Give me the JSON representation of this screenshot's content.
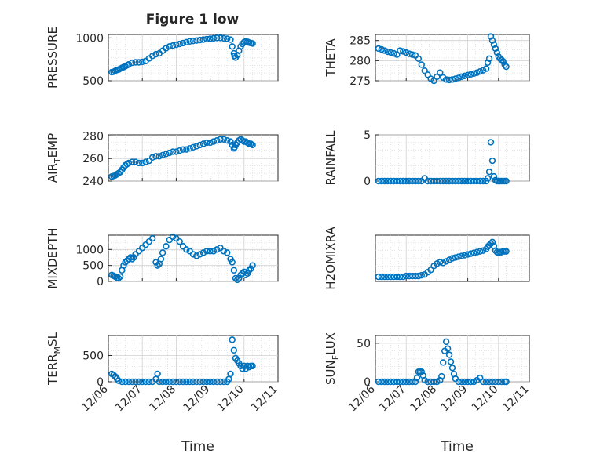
{
  "chart_data": [
    {
      "type": "scatter",
      "title": "Figure 1 low",
      "ylabel": "PRESSURE",
      "yticks": [
        "500",
        "1000"
      ],
      "ytick_values": [
        500,
        1000
      ],
      "ylim": [
        500,
        1040
      ],
      "xlim": [
        0,
        5
      ],
      "x": [
        0.1,
        0.15,
        0.2,
        0.25,
        0.3,
        0.35,
        0.4,
        0.45,
        0.5,
        0.55,
        0.6,
        0.7,
        0.8,
        0.9,
        1.0,
        1.1,
        1.2,
        1.3,
        1.4,
        1.5,
        1.6,
        1.7,
        1.8,
        1.9,
        2.0,
        2.1,
        2.2,
        2.3,
        2.4,
        2.5,
        2.6,
        2.7,
        2.8,
        2.9,
        3.0,
        3.1,
        3.2,
        3.3,
        3.4,
        3.5,
        3.6,
        3.65,
        3.7,
        3.72,
        3.75,
        3.8,
        3.85,
        3.9,
        3.95,
        4.0,
        4.05,
        4.1,
        4.15,
        4.2,
        4.25
      ],
      "y": [
        600,
        605,
        615,
        625,
        630,
        640,
        650,
        660,
        670,
        680,
        690,
        710,
        715,
        715,
        720,
        730,
        760,
        790,
        810,
        820,
        850,
        880,
        900,
        910,
        920,
        930,
        940,
        950,
        960,
        965,
        970,
        975,
        980,
        985,
        990,
        995,
        1000,
        1000,
        995,
        990,
        980,
        900,
        820,
        790,
        770,
        800,
        850,
        900,
        930,
        950,
        960,
        955,
        945,
        940,
        935
      ],
      "xlabel": ""
    },
    {
      "type": "scatter",
      "ylabel": "THETA",
      "yticks": [
        "275",
        "280",
        "285"
      ],
      "ytick_values": [
        275,
        280,
        285
      ],
      "ylim": [
        275,
        286.5
      ],
      "xlim": [
        0,
        5
      ],
      "x": [
        0.1,
        0.2,
        0.3,
        0.4,
        0.5,
        0.6,
        0.7,
        0.8,
        0.9,
        1.0,
        1.1,
        1.2,
        1.3,
        1.4,
        1.5,
        1.6,
        1.7,
        1.8,
        1.9,
        2.0,
        2.1,
        2.2,
        2.3,
        2.4,
        2.5,
        2.6,
        2.7,
        2.8,
        2.9,
        3.0,
        3.1,
        3.2,
        3.3,
        3.4,
        3.5,
        3.6,
        3.65,
        3.7,
        3.75,
        3.8,
        3.85,
        3.9,
        3.95,
        4.0,
        4.05,
        4.1,
        4.15,
        4.2,
        4.25
      ],
      "y": [
        283,
        282.8,
        282.5,
        282.2,
        282.0,
        281.8,
        281.5,
        282.5,
        282.3,
        282.0,
        281.7,
        281.5,
        281.3,
        280.5,
        279.0,
        277.5,
        276.5,
        275.5,
        275.0,
        276.0,
        277.0,
        275.8,
        275.3,
        275.2,
        275.3,
        275.5,
        275.7,
        276.0,
        276.2,
        276.4,
        276.6,
        276.8,
        277.0,
        277.3,
        277.6,
        278.0,
        279.5,
        280.5,
        286.0,
        285.0,
        284.0,
        283.0,
        282.0,
        281.0,
        280.5,
        280.2,
        279.8,
        279.0,
        278.5
      ],
      "xlabel": ""
    },
    {
      "type": "scatter",
      "ylabel_main": "AIR",
      "ylabel_sub": "T",
      "ylabel_rest": "EMP",
      "yticks": [
        "240",
        "260",
        "280"
      ],
      "ytick_values": [
        240,
        260,
        280
      ],
      "ylim": [
        240,
        281
      ],
      "xlim": [
        0,
        5
      ],
      "x": [
        0.1,
        0.15,
        0.2,
        0.25,
        0.3,
        0.35,
        0.4,
        0.45,
        0.5,
        0.55,
        0.6,
        0.7,
        0.8,
        0.9,
        1.0,
        1.1,
        1.2,
        1.3,
        1.4,
        1.5,
        1.6,
        1.7,
        1.8,
        1.9,
        2.0,
        2.1,
        2.2,
        2.3,
        2.4,
        2.5,
        2.6,
        2.7,
        2.8,
        2.9,
        3.0,
        3.1,
        3.2,
        3.3,
        3.4,
        3.5,
        3.6,
        3.65,
        3.7,
        3.72,
        3.75,
        3.8,
        3.85,
        3.9,
        3.95,
        4.0,
        4.05,
        4.1,
        4.15,
        4.2,
        4.25
      ],
      "y": [
        244,
        244.5,
        245,
        246,
        247,
        248,
        250,
        252,
        254,
        255,
        256,
        257,
        257,
        256,
        256,
        257,
        258,
        261,
        262,
        262,
        263,
        264,
        265,
        266,
        266,
        267,
        268,
        268,
        269,
        270,
        271,
        272,
        273,
        274,
        274,
        275,
        276,
        277,
        277,
        276,
        275,
        272,
        269,
        270,
        272,
        274,
        276,
        277,
        276,
        275,
        275,
        274,
        273,
        273,
        272
      ],
      "xlabel": ""
    },
    {
      "type": "scatter",
      "ylabel": "RAINFALL",
      "yticks": [
        "0",
        "5"
      ],
      "ytick_values": [
        0,
        5
      ],
      "ylim": [
        0,
        5
      ],
      "xlim": [
        0,
        5
      ],
      "x": [
        0.1,
        0.2,
        0.3,
        0.4,
        0.5,
        0.6,
        0.7,
        0.8,
        0.9,
        1.0,
        1.1,
        1.2,
        1.3,
        1.4,
        1.5,
        1.6,
        1.7,
        1.8,
        1.9,
        2.0,
        2.1,
        2.2,
        2.3,
        2.4,
        2.5,
        2.6,
        2.7,
        2.8,
        2.9,
        3.0,
        3.1,
        3.2,
        3.3,
        3.4,
        3.5,
        3.6,
        3.65,
        3.7,
        3.75,
        3.8,
        3.85,
        3.9,
        3.95,
        4.0,
        4.05,
        4.1,
        4.15,
        4.2,
        4.25
      ],
      "y": [
        0,
        0,
        0,
        0,
        0,
        0,
        0,
        0,
        0,
        0,
        0,
        0,
        0,
        0,
        0,
        0.3,
        0,
        0,
        0,
        0,
        0,
        0,
        0,
        0,
        0,
        0,
        0,
        0,
        0,
        0,
        0,
        0,
        0,
        0,
        0,
        0,
        0.3,
        1.0,
        4.2,
        2.2,
        0.5,
        0.1,
        0,
        0,
        0,
        0,
        0,
        0,
        0
      ],
      "xlabel": ""
    },
    {
      "type": "scatter",
      "ylabel": "MIXDEPTH",
      "yticks": [
        "0",
        "500",
        "1000"
      ],
      "ytick_values": [
        0,
        500,
        1000
      ],
      "ylim": [
        0,
        1450
      ],
      "xlim": [
        0,
        5
      ],
      "x": [
        0.1,
        0.15,
        0.2,
        0.25,
        0.3,
        0.35,
        0.4,
        0.45,
        0.5,
        0.55,
        0.6,
        0.65,
        0.7,
        0.75,
        0.8,
        0.9,
        1.0,
        1.1,
        1.2,
        1.3,
        1.4,
        1.45,
        1.5,
        1.55,
        1.6,
        1.7,
        1.8,
        1.9,
        2.0,
        2.1,
        2.2,
        2.3,
        2.4,
        2.5,
        2.6,
        2.7,
        2.8,
        2.9,
        3.0,
        3.1,
        3.2,
        3.3,
        3.4,
        3.5,
        3.6,
        3.65,
        3.7,
        3.75,
        3.8,
        3.85,
        3.9,
        3.95,
        4.0,
        4.05,
        4.1,
        4.15,
        4.2,
        4.25
      ],
      "y": [
        200,
        180,
        150,
        120,
        100,
        150,
        350,
        500,
        600,
        650,
        700,
        750,
        700,
        750,
        850,
        950,
        1050,
        1150,
        1250,
        1350,
        600,
        500,
        550,
        700,
        900,
        1100,
        1300,
        1400,
        1350,
        1250,
        1100,
        1000,
        950,
        850,
        800,
        850,
        900,
        950,
        950,
        950,
        1000,
        1050,
        950,
        900,
        700,
        600,
        350,
        100,
        50,
        100,
        200,
        250,
        300,
        200,
        250,
        350,
        400,
        500
      ],
      "xlabel": ""
    },
    {
      "type": "scatter",
      "ylabel": "H2OMIXRA",
      "yticks": [],
      "ytick_values": [],
      "ylim": [
        0,
        6
      ],
      "xlim": [
        0,
        5
      ],
      "x": [
        0.1,
        0.2,
        0.3,
        0.4,
        0.5,
        0.6,
        0.7,
        0.8,
        0.9,
        1.0,
        1.1,
        1.2,
        1.3,
        1.4,
        1.5,
        1.6,
        1.7,
        1.8,
        1.9,
        2.0,
        2.1,
        2.2,
        2.3,
        2.4,
        2.5,
        2.6,
        2.7,
        2.8,
        2.9,
        3.0,
        3.1,
        3.2,
        3.3,
        3.4,
        3.5,
        3.6,
        3.65,
        3.7,
        3.75,
        3.8,
        3.85,
        3.9,
        3.95,
        4.0,
        4.05,
        4.1,
        4.15,
        4.2,
        4.25
      ],
      "y": [
        0.6,
        0.6,
        0.6,
        0.6,
        0.6,
        0.6,
        0.6,
        0.6,
        0.6,
        0.7,
        0.7,
        0.7,
        0.7,
        0.7,
        0.8,
        0.9,
        1.2,
        1.5,
        2.0,
        2.3,
        2.5,
        2.4,
        2.6,
        2.8,
        3.0,
        3.1,
        3.2,
        3.3,
        3.4,
        3.5,
        3.6,
        3.7,
        3.8,
        3.9,
        4.0,
        4.2,
        4.5,
        4.7,
        4.9,
        5.1,
        4.6,
        4.0,
        3.8,
        3.7,
        3.8,
        3.8,
        3.9,
        3.9,
        3.9
      ],
      "xlabel": ""
    },
    {
      "type": "scatter",
      "ylabel_main": "TERR",
      "ylabel_sub": "M",
      "ylabel_rest": "SL",
      "yticks": [
        "0",
        "500"
      ],
      "ytick_values": [
        0,
        500
      ],
      "ylim": [
        0,
        880
      ],
      "xlim": [
        0,
        5
      ],
      "xticks": [
        "12/06",
        "12/07",
        "12/08",
        "12/09",
        "12/10",
        "12/11"
      ],
      "xtick_values": [
        0,
        1,
        2,
        3,
        4,
        5
      ],
      "x": [
        0.1,
        0.15,
        0.2,
        0.25,
        0.3,
        0.4,
        0.5,
        0.6,
        0.7,
        0.8,
        0.9,
        1.0,
        1.1,
        1.2,
        1.3,
        1.4,
        1.45,
        1.5,
        1.6,
        1.7,
        1.8,
        1.9,
        2.0,
        2.1,
        2.2,
        2.3,
        2.4,
        2.5,
        2.6,
        2.7,
        2.8,
        2.9,
        3.0,
        3.1,
        3.2,
        3.3,
        3.4,
        3.5,
        3.55,
        3.6,
        3.65,
        3.7,
        3.75,
        3.8,
        3.85,
        3.9,
        3.95,
        4.0,
        4.05,
        4.1,
        4.15,
        4.2,
        4.25
      ],
      "y": [
        150,
        130,
        100,
        60,
        20,
        0,
        0,
        0,
        0,
        0,
        0,
        0,
        0,
        0,
        0,
        50,
        150,
        0,
        0,
        0,
        0,
        0,
        0,
        0,
        0,
        0,
        0,
        0,
        0,
        0,
        0,
        0,
        0,
        0,
        0,
        0,
        0,
        0,
        50,
        150,
        800,
        600,
        450,
        400,
        350,
        300,
        250,
        300,
        250,
        300,
        280,
        300,
        300
      ],
      "xlabel": "Time"
    },
    {
      "type": "scatter",
      "ylabel_main": "SUN",
      "ylabel_sub": "F",
      "ylabel_rest": "LUX",
      "yticks": [
        "0",
        "50"
      ],
      "ytick_values": [
        0,
        50
      ],
      "ylim": [
        0,
        60
      ],
      "xlim": [
        0,
        5
      ],
      "xticks": [
        "12/06",
        "12/07",
        "12/08",
        "12/09",
        "12/10",
        "12/11"
      ],
      "xtick_values": [
        0,
        1,
        2,
        3,
        4,
        5
      ],
      "x": [
        0.1,
        0.2,
        0.3,
        0.4,
        0.5,
        0.6,
        0.7,
        0.8,
        0.9,
        1.0,
        1.1,
        1.2,
        1.3,
        1.35,
        1.4,
        1.45,
        1.5,
        1.55,
        1.6,
        1.7,
        1.8,
        1.9,
        2.0,
        2.1,
        2.15,
        2.2,
        2.25,
        2.3,
        2.35,
        2.4,
        2.45,
        2.5,
        2.55,
        2.6,
        2.7,
        2.8,
        2.9,
        3.0,
        3.1,
        3.2,
        3.3,
        3.4,
        3.5,
        3.6,
        3.7,
        3.8,
        3.9,
        4.0,
        4.1,
        4.2,
        4.25
      ],
      "y": [
        0,
        0,
        0,
        0,
        0,
        0,
        0,
        0,
        0,
        0,
        0,
        0,
        0,
        5,
        13,
        13,
        13,
        8,
        2,
        0,
        0,
        0,
        0,
        2,
        7,
        25,
        40,
        52,
        43,
        35,
        26,
        18,
        10,
        4,
        0,
        0,
        0,
        0,
        0,
        0,
        2,
        5,
        0,
        0,
        0,
        0,
        0,
        0,
        0,
        0,
        0
      ],
      "xlabel": "Time"
    }
  ]
}
